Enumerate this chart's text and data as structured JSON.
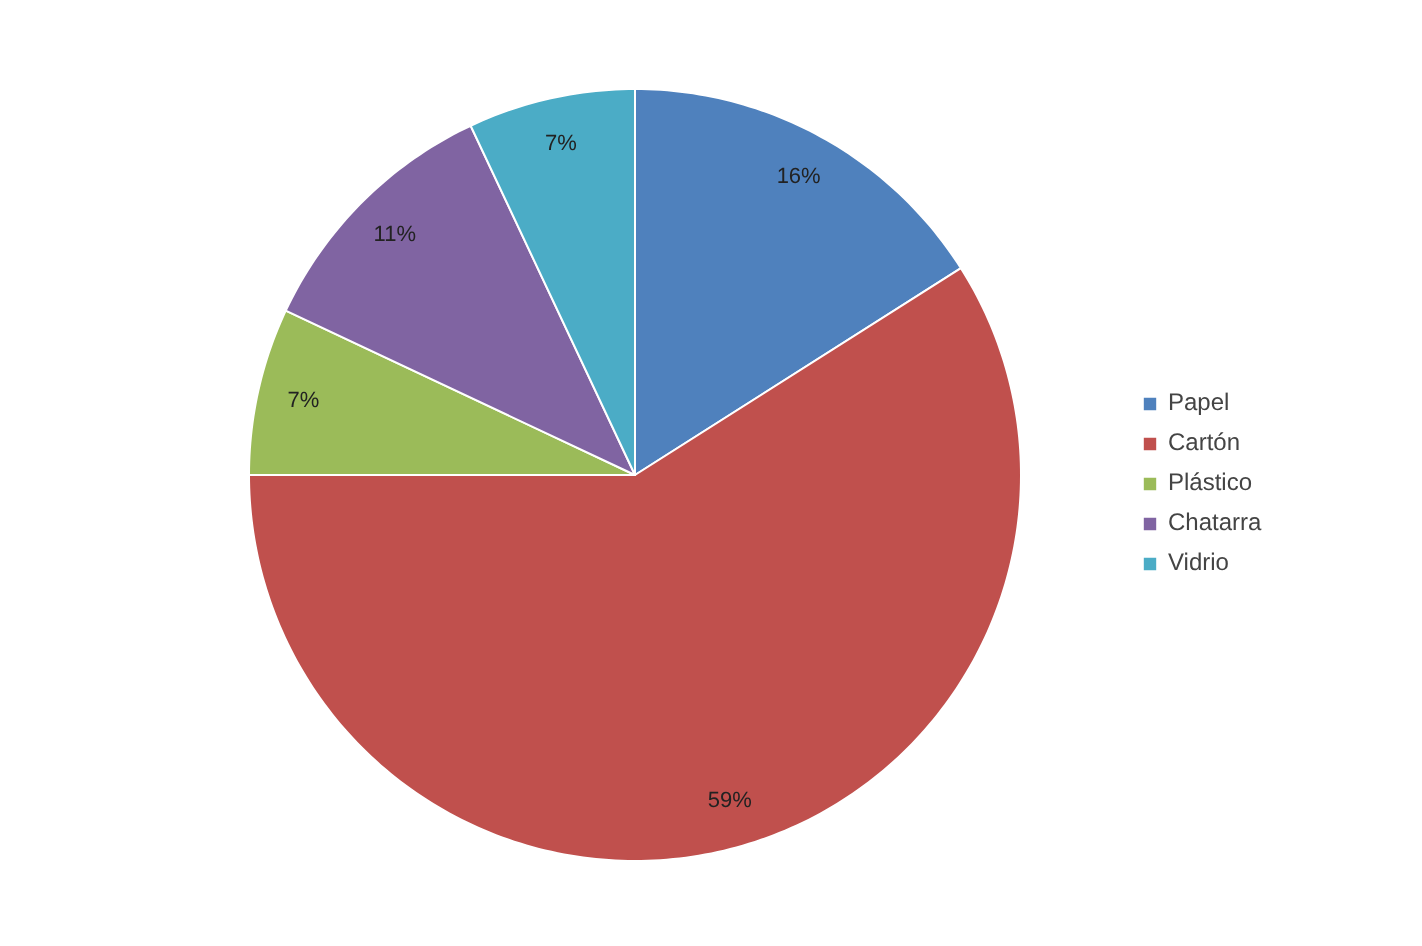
{
  "chart_data": {
    "type": "pie",
    "categories": [
      "Papel",
      "Cartón",
      "Plástico",
      "Chatarra",
      "Vidrio"
    ],
    "values": [
      16,
      59,
      7,
      11,
      7
    ],
    "colors": [
      "#4f81bd",
      "#c0504d",
      "#9bbb59",
      "#8064a2",
      "#4bacc6"
    ],
    "value_labels": [
      "16%",
      "59%",
      "7%",
      "11%",
      "7%"
    ],
    "legend": "right"
  }
}
